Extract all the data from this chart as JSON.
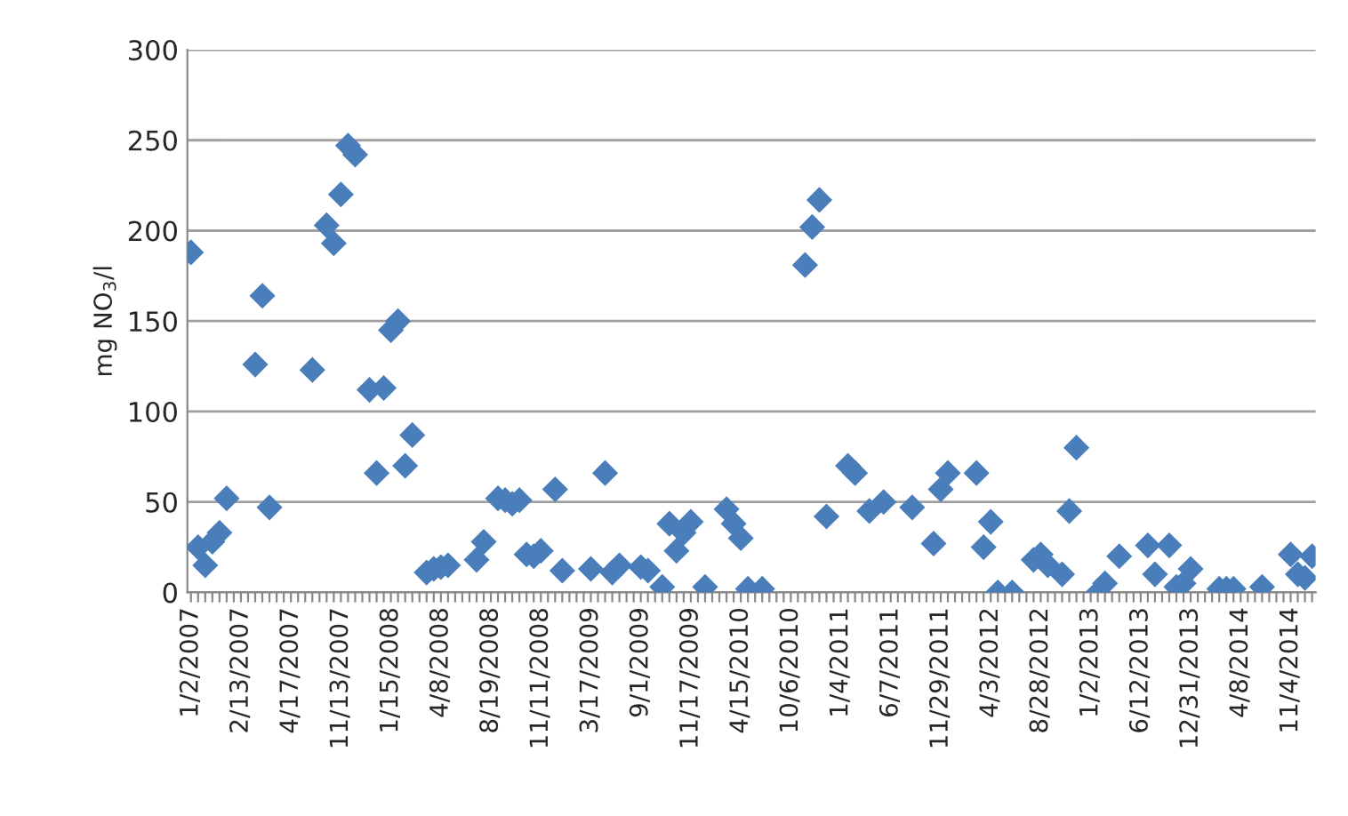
{
  "chart_data": {
    "type": "scatter",
    "ylabel": "mg NO$_{3}$/l",
    "categories": [
      "1/2/2007",
      null,
      null,
      null,
      null,
      null,
      null,
      "2/13/2007",
      null,
      null,
      null,
      null,
      null,
      null,
      "4/17/2007",
      null,
      null,
      null,
      null,
      null,
      null,
      "11/13/2007",
      null,
      null,
      null,
      null,
      null,
      null,
      "1/15/2008",
      null,
      null,
      null,
      null,
      null,
      null,
      "4/8/2008",
      null,
      null,
      null,
      null,
      null,
      null,
      "8/19/2008",
      null,
      null,
      null,
      null,
      null,
      null,
      "11/11/2008",
      null,
      null,
      null,
      null,
      null,
      null,
      "3/17/2009",
      null,
      null,
      null,
      null,
      null,
      null,
      "9/1/2009",
      null,
      null,
      null,
      null,
      null,
      null,
      "11/17/2009",
      null,
      null,
      null,
      null,
      null,
      null,
      "4/15/2010",
      null,
      null,
      null,
      null,
      null,
      null,
      "10/6/2010",
      null,
      null,
      null,
      null,
      null,
      null,
      "1/4/2011",
      null,
      null,
      null,
      null,
      null,
      null,
      "6/7/2011",
      null,
      null,
      null,
      null,
      null,
      null,
      "11/29/2011",
      null,
      null,
      null,
      null,
      null,
      null,
      "4/3/2012",
      null,
      null,
      null,
      null,
      null,
      null,
      "8/28/2012",
      null,
      null,
      null,
      null,
      null,
      null,
      "1/2/2013",
      null,
      null,
      null,
      null,
      null,
      null,
      "6/12/2013",
      null,
      null,
      null,
      null,
      null,
      null,
      "12/31/2013",
      null,
      null,
      null,
      null,
      null,
      null,
      "4/8/2014",
      null,
      null,
      null,
      null,
      null,
      null,
      "11/4/2014",
      null,
      null,
      null
    ],
    "series": [
      {
        "color": "#4a7ebb",
        "values": [
          188,
          25,
          15,
          28,
          33,
          52,
          null,
          null,
          null,
          126,
          164,
          47,
          null,
          null,
          null,
          null,
          null,
          123,
          null,
          203,
          193,
          220,
          247,
          242,
          null,
          112,
          66,
          113,
          145,
          150,
          70,
          87,
          null,
          11,
          13,
          14,
          15,
          null,
          null,
          null,
          18,
          28,
          null,
          52,
          51,
          49,
          51,
          21,
          20,
          23,
          null,
          57,
          12,
          null,
          null,
          null,
          13,
          null,
          66,
          11,
          15,
          null,
          null,
          14,
          12,
          null,
          3,
          38,
          23,
          33,
          39,
          null,
          3,
          null,
          null,
          46,
          38,
          30,
          2,
          null,
          2,
          null,
          null,
          null,
          null,
          null,
          181,
          202,
          217,
          42,
          null,
          null,
          70,
          66,
          null,
          45,
          null,
          50,
          null,
          null,
          null,
          47,
          null,
          null,
          27,
          57,
          66,
          null,
          null,
          null,
          66,
          25,
          39,
          0,
          null,
          0,
          null,
          null,
          18,
          21,
          15,
          null,
          10,
          45,
          80,
          null,
          null,
          0,
          5,
          null,
          20,
          null,
          null,
          null,
          26,
          10,
          null,
          26,
          3,
          5,
          13,
          null,
          null,
          null,
          2,
          2,
          2,
          null,
          null,
          null,
          3,
          null,
          null,
          null,
          21,
          10,
          8,
          20
        ]
      }
    ],
    "ylim": [
      0,
      300
    ],
    "yticks": [
      0,
      50,
      100,
      150,
      200,
      250,
      300
    ],
    "grid": "y",
    "marker": "diamond",
    "legend": false
  }
}
